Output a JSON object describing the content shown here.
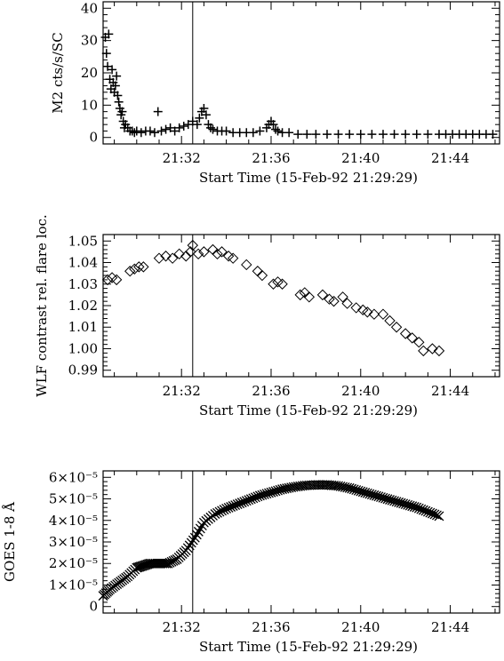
{
  "chart_data": [
    {
      "type": "scatter",
      "marker": "plus",
      "ylabel": "M2 cts/s/SC",
      "xlabel": "Start Time (15-Feb-92 21:29:29)",
      "xlim_min": [
        -0.5,
        17.2
      ],
      "ylim": [
        -2,
        42
      ],
      "xticks": [
        {
          "value": 3,
          "label": "21:32"
        },
        {
          "value": 7,
          "label": "21:36"
        },
        {
          "value": 11,
          "label": "21:40"
        },
        {
          "value": 15,
          "label": "21:44"
        }
      ],
      "yticks": [
        {
          "value": 0,
          "label": "0"
        },
        {
          "value": 10,
          "label": "10"
        },
        {
          "value": 20,
          "label": "20"
        },
        {
          "value": 30,
          "label": "30"
        },
        {
          "value": 40,
          "label": "40"
        }
      ],
      "vline_min": 3.5,
      "series": [
        {
          "x_min": [
            -0.4,
            -0.35,
            -0.3,
            -0.25,
            -0.2,
            -0.15,
            -0.1,
            -0.05,
            0.0,
            0.05,
            0.1,
            0.15,
            0.2,
            0.25,
            0.3,
            0.35,
            0.4,
            0.45,
            0.5,
            0.6,
            0.7,
            0.8,
            0.9,
            1.0,
            1.2,
            1.4,
            1.6,
            1.8,
            1.95,
            2.1,
            2.3,
            2.5,
            2.7,
            2.9,
            3.1,
            3.3,
            3.5,
            3.7,
            3.8,
            3.9,
            4.0,
            4.1,
            4.2,
            4.3,
            4.4,
            4.6,
            4.8,
            5.0,
            5.3,
            5.6,
            5.9,
            6.2,
            6.5,
            6.8,
            6.9,
            7.0,
            7.1,
            7.2,
            7.3,
            7.5,
            7.8,
            8.2,
            8.6,
            9.0,
            9.5,
            10.0,
            10.5,
            11.0,
            11.5,
            12.0,
            12.5,
            13.0,
            13.5,
            14.0,
            14.5,
            14.8,
            15.1,
            15.4,
            15.7,
            16.0,
            16.3,
            16.6,
            16.9
          ],
          "y": [
            31,
            26,
            22,
            32,
            18,
            15,
            21,
            17,
            14,
            16,
            19,
            13,
            11,
            9,
            7,
            8,
            5,
            3,
            4,
            3,
            2,
            2,
            1.5,
            2,
            1.5,
            2,
            2,
            1.5,
            8,
            2,
            2.5,
            3,
            2,
            3,
            3.5,
            4,
            5,
            4,
            6,
            8,
            9,
            7,
            4,
            3,
            2.5,
            2,
            2,
            2,
            1.5,
            1.5,
            1.5,
            1.5,
            2,
            3,
            4,
            5,
            4,
            2.5,
            2,
            1.5,
            1.5,
            1,
            1,
            1,
            1,
            1,
            1,
            1,
            1,
            1,
            1,
            1,
            1,
            1,
            1,
            1,
            1,
            1,
            1,
            1,
            1,
            1,
            1
          ]
        }
      ]
    },
    {
      "type": "scatter",
      "marker": "diamond",
      "ylabel": "WLF contrast rel. flare loc.",
      "xlabel": "Start Time (15-Feb-92 21:29:29)",
      "xlim_min": [
        -0.5,
        17.2
      ],
      "ylim": [
        0.987,
        1.053
      ],
      "xticks": [
        {
          "value": 3,
          "label": "21:32"
        },
        {
          "value": 7,
          "label": "21:36"
        },
        {
          "value": 11,
          "label": "21:40"
        },
        {
          "value": 15,
          "label": "21:44"
        }
      ],
      "yticks": [
        {
          "value": 0.99,
          "label": "0.99"
        },
        {
          "value": 1.0,
          "label": "1.00"
        },
        {
          "value": 1.01,
          "label": "1.01"
        },
        {
          "value": 1.02,
          "label": "1.02"
        },
        {
          "value": 1.03,
          "label": "1.03"
        },
        {
          "value": 1.04,
          "label": "1.04"
        },
        {
          "value": 1.05,
          "label": "1.05"
        }
      ],
      "vline_min": 3.5,
      "series": [
        {
          "x_min": [
            -0.3,
            -0.1,
            0.1,
            0.7,
            0.9,
            1.1,
            1.3,
            2.0,
            2.3,
            2.6,
            2.9,
            3.2,
            3.4,
            3.5,
            3.75,
            4.0,
            4.4,
            4.6,
            4.8,
            5.1,
            5.3,
            5.9,
            6.4,
            6.6,
            7.1,
            7.3,
            7.5,
            8.3,
            8.5,
            8.7,
            9.3,
            9.6,
            9.8,
            10.2,
            10.4,
            10.8,
            11.1,
            11.3,
            11.6,
            12.0,
            12.3,
            12.6,
            13.0,
            13.3,
            13.6,
            13.8,
            14.2,
            14.5
          ],
          "y": [
            1.032,
            1.033,
            1.032,
            1.036,
            1.037,
            1.038,
            1.038,
            1.042,
            1.043,
            1.042,
            1.044,
            1.043,
            1.045,
            1.048,
            1.044,
            1.045,
            1.046,
            1.044,
            1.045,
            1.043,
            1.042,
            1.039,
            1.036,
            1.034,
            1.03,
            1.031,
            1.03,
            1.025,
            1.026,
            1.024,
            1.025,
            1.023,
            1.022,
            1.024,
            1.021,
            1.019,
            1.018,
            1.017,
            1.016,
            1.016,
            1.013,
            1.01,
            1.007,
            1.005,
            1.003,
            0.999,
            1.0,
            0.999
          ]
        }
      ]
    },
    {
      "type": "scatter",
      "marker": "cross",
      "ylabel": "GOES 1-8 Å",
      "xlabel": "Start Time (15-Feb-92 21:29:29)",
      "xlim_min": [
        -0.5,
        17.2
      ],
      "ylim_e5": [
        -0.3,
        6.3
      ],
      "xticks": [
        {
          "value": 3,
          "label": "21:32"
        },
        {
          "value": 7,
          "label": "21:36"
        },
        {
          "value": 11,
          "label": "21:40"
        },
        {
          "value": 15,
          "label": "21:44"
        }
      ],
      "yticks": [
        {
          "value": 0,
          "label": "0"
        },
        {
          "value": 1,
          "label": "1×10⁻⁵"
        },
        {
          "value": 2,
          "label": "2×10⁻⁵"
        },
        {
          "value": 3,
          "label": "3×10⁻⁵"
        },
        {
          "value": 4,
          "label": "4×10⁻⁵"
        },
        {
          "value": 5,
          "label": "5×10⁻⁵"
        },
        {
          "value": 6,
          "label": "6×10⁻⁵"
        }
      ],
      "vline_min": 3.5,
      "series": [
        {
          "x_min": [
            -0.5,
            -0.2,
            0.2,
            0.6,
            1.0,
            1.3,
            1.6,
            2.0,
            2.4,
            2.8,
            3.2,
            3.6,
            4.0,
            4.5,
            5.0,
            5.5,
            6.0,
            6.5,
            7.0,
            7.5,
            8.0,
            8.5,
            9.0,
            9.5,
            10.0,
            10.5,
            11.0,
            11.5,
            12.0,
            12.5,
            13.0,
            13.5,
            14.0,
            14.5
          ],
          "y_e5": [
            0.5,
            0.8,
            1.1,
            1.4,
            1.8,
            1.9,
            2.0,
            2.0,
            2.0,
            2.2,
            2.6,
            3.2,
            3.9,
            4.3,
            4.55,
            4.75,
            4.95,
            5.15,
            5.3,
            5.45,
            5.55,
            5.62,
            5.65,
            5.65,
            5.6,
            5.5,
            5.35,
            5.2,
            5.05,
            4.9,
            4.75,
            4.6,
            4.4,
            4.2
          ]
        }
      ]
    }
  ]
}
